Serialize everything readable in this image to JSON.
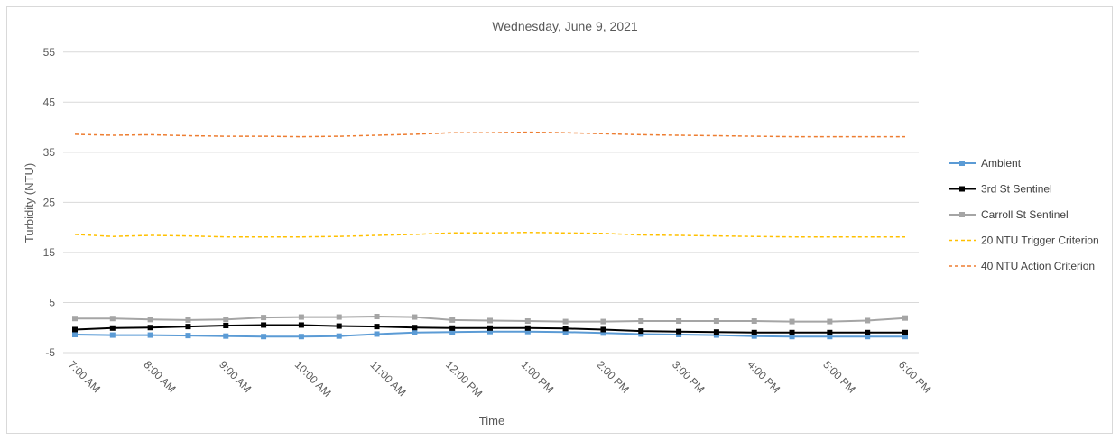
{
  "chart_data": {
    "type": "line",
    "title": "Wednesday, June 9, 2021",
    "xlabel": "Time",
    "ylabel": "Turbidity (NTU)",
    "ylim": [
      -5,
      60
    ],
    "yticks": [
      -5,
      5,
      15,
      25,
      35,
      45,
      55
    ],
    "grid": "horizontal",
    "legend_position": "right",
    "x_tick_labels": [
      "7:00 AM",
      "8:00 AM",
      "9:00 AM",
      "10:00 AM",
      "11:00 AM",
      "12:00 PM",
      "1:00 PM",
      "2:00 PM",
      "3:00 PM",
      "4:00 PM",
      "5:00 PM",
      "6:00 PM"
    ],
    "x_tick_hours": [
      7,
      8,
      9,
      10,
      11,
      12,
      13,
      14,
      15,
      16,
      17,
      18
    ],
    "xlim_hours": [
      7,
      18
    ],
    "x_hours": [
      7,
      7.5,
      8,
      8.5,
      9,
      9.5,
      10,
      10.5,
      11,
      11.5,
      12,
      12.5,
      13,
      13.5,
      14,
      14.5,
      15,
      15.5,
      16,
      16.5,
      17,
      17.5,
      18
    ],
    "series": [
      {
        "name": "Ambient",
        "color": "#5b9bd5",
        "style": "solid-marker",
        "values": [
          -1.4,
          -1.5,
          -1.5,
          -1.6,
          -1.7,
          -1.8,
          -1.8,
          -1.7,
          -1.3,
          -1.0,
          -0.9,
          -0.8,
          -0.8,
          -0.9,
          -1.1,
          -1.3,
          -1.4,
          -1.5,
          -1.7,
          -1.8,
          -1.8,
          -1.8,
          -1.8
        ]
      },
      {
        "name": "3rd St Sentinel",
        "color": "#000000",
        "style": "solid-marker",
        "values": [
          -0.4,
          -0.1,
          0.0,
          0.2,
          0.4,
          0.5,
          0.5,
          0.3,
          0.2,
          0.0,
          -0.1,
          -0.1,
          -0.1,
          -0.2,
          -0.4,
          -0.7,
          -0.8,
          -0.9,
          -1.0,
          -1.0,
          -1.0,
          -1.0,
          -1.0
        ]
      },
      {
        "name": "Carroll St Sentinel",
        "color": "#a5a5a5",
        "style": "solid-marker",
        "values": [
          1.8,
          1.8,
          1.6,
          1.5,
          1.6,
          2.0,
          2.1,
          2.1,
          2.2,
          2.1,
          1.5,
          1.4,
          1.3,
          1.2,
          1.2,
          1.3,
          1.3,
          1.3,
          1.3,
          1.2,
          1.2,
          1.4,
          1.9
        ]
      },
      {
        "name": "20 NTU Trigger Criterion",
        "color": "#ffc000",
        "style": "dashed",
        "values": [
          18.6,
          18.2,
          18.4,
          18.3,
          18.1,
          18.1,
          18.1,
          18.2,
          18.4,
          18.6,
          18.9,
          18.9,
          19.0,
          18.9,
          18.8,
          18.5,
          18.4,
          18.3,
          18.2,
          18.1,
          18.1,
          18.1,
          18.1
        ]
      },
      {
        "name": "40 NTU Action Criterion",
        "color": "#ed7d31",
        "style": "dashed",
        "values": [
          38.6,
          38.4,
          38.5,
          38.3,
          38.2,
          38.2,
          38.1,
          38.2,
          38.4,
          38.6,
          38.9,
          38.9,
          39.0,
          38.9,
          38.7,
          38.5,
          38.4,
          38.3,
          38.2,
          38.1,
          38.1,
          38.1,
          38.1
        ]
      }
    ]
  }
}
